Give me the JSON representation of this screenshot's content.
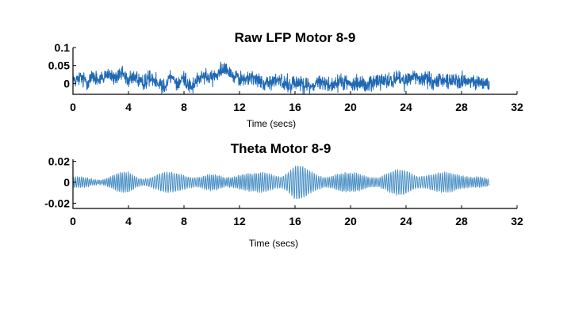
{
  "chart_data": [
    {
      "type": "line",
      "title": "Raw LFP Motor 8-9",
      "xlabel": "Time (secs)",
      "ylabel": "",
      "xlim": [
        0,
        32
      ],
      "ylim": [
        -0.03,
        0.1
      ],
      "xticks": [
        0,
        4,
        8,
        12,
        16,
        20,
        24,
        28,
        32
      ],
      "xtick_labels": [
        "0",
        "4",
        "8",
        "12",
        "16",
        "20",
        "24",
        "28",
        "32"
      ],
      "yticks": [
        0,
        0.05,
        0.1
      ],
      "ytick_labels": [
        "0",
        "0.05",
        "0.1"
      ],
      "grid": false,
      "series_color": "#1f68b4",
      "series": [
        {
          "x": [
            0,
            0.5,
            1,
            1.5,
            2,
            2.5,
            3,
            3.5,
            4,
            4.5,
            5,
            5.5,
            6,
            6.5,
            7,
            7.5,
            8,
            8.5,
            9,
            9.5,
            10,
            10.5,
            11,
            11.5,
            12,
            12.5,
            13,
            13.5,
            14,
            14.5,
            15,
            15.5,
            16,
            16.5,
            17,
            17.5,
            18,
            18.5,
            19,
            19.5,
            20,
            20.5,
            21,
            21.5,
            22,
            22.5,
            23,
            23.5,
            24,
            24.5,
            25,
            25.5,
            26,
            26.5,
            27,
            27.5,
            28,
            28.5,
            29,
            29.5,
            30
          ],
          "y": [
            0.01,
            0.015,
            0.005,
            0.02,
            0.01,
            0.025,
            0.015,
            0.03,
            0.01,
            0.02,
            0.0,
            0.015,
            0.01,
            -0.01,
            0.02,
            0.0,
            0.015,
            -0.01,
            0.01,
            0.02,
            0.015,
            0.03,
            0.05,
            0.02,
            0.015,
            0.01,
            0.02,
            0.005,
            0.0,
            0.01,
            0.005,
            -0.005,
            0.0,
            0.005,
            -0.01,
            0.0,
            0.005,
            -0.005,
            0.0,
            0.005,
            0.0,
            0.005,
            -0.005,
            0.0,
            0.01,
            0.005,
            0.01,
            0.015,
            0.01,
            0.02,
            0.01,
            0.015,
            0.005,
            0.01,
            0.005,
            0.01,
            0.0,
            0.005,
            0.0,
            0.005,
            0.0
          ]
        }
      ]
    },
    {
      "type": "line",
      "title": "Theta Motor 8-9",
      "xlabel": "Time (secs)",
      "ylabel": "",
      "xlim": [
        0,
        32
      ],
      "ylim": [
        -0.025,
        0.022
      ],
      "xticks": [
        0,
        4,
        8,
        12,
        16,
        20,
        24,
        28,
        32
      ],
      "xtick_labels": [
        "0",
        "4",
        "8",
        "12",
        "16",
        "20",
        "24",
        "28",
        "32"
      ],
      "yticks": [
        -0.02,
        0,
        0.02
      ],
      "ytick_labels": [
        "-0.02",
        "0",
        "0.02"
      ],
      "grid": false,
      "series_color": "#4a90c4",
      "series": [
        {
          "x": [
            0,
            1,
            2,
            3,
            4,
            5,
            6,
            7,
            8,
            9,
            10,
            11,
            12,
            13,
            14,
            15,
            16,
            17,
            18,
            19,
            20,
            21,
            22,
            23,
            24,
            25,
            26,
            27,
            28,
            29,
            30
          ],
          "amplitude": [
            0.005,
            0.006,
            0.004,
            0.008,
            0.011,
            0.006,
            0.009,
            0.01,
            0.012,
            0.007,
            0.008,
            0.006,
            0.013,
            0.009,
            0.01,
            0.011,
            0.02,
            0.012,
            0.009,
            0.011,
            0.009,
            0.01,
            0.008,
            0.011,
            0.014,
            0.011,
            0.009,
            0.01,
            0.012,
            0.007,
            0.003
          ],
          "frequency_hz": 6.5
        }
      ]
    }
  ]
}
